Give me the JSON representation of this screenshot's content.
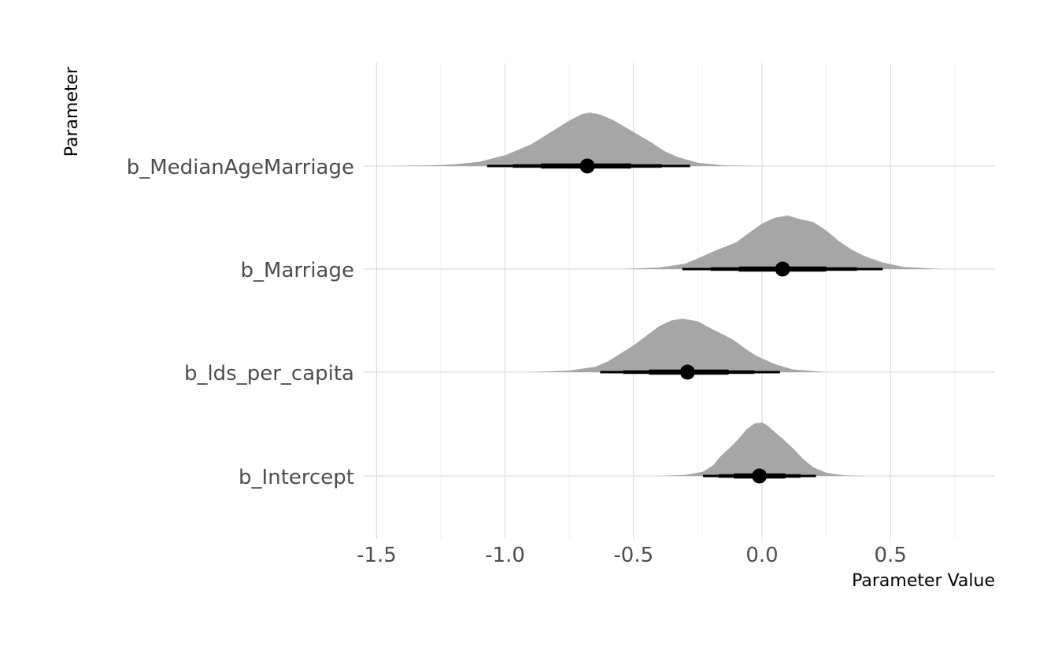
{
  "chart_data": {
    "type": "halfeye",
    "xlabel": "Parameter Value",
    "ylabel": "Parameter",
    "xlim": [
      -1.5,
      0.9
    ],
    "x_ticks": [
      -1.5,
      -1.0,
      -0.5,
      0.0,
      0.5
    ],
    "x_tick_labels": [
      "-1.5",
      "-1.0",
      "-0.5",
      "0.0",
      "0.5"
    ],
    "grid": true,
    "legend": "none",
    "colors": {
      "density": "#a6a6a6",
      "interval": "#000000",
      "grid": "#dcdcdc"
    },
    "parameters": [
      {
        "name": "b_MedianAgeMarriage",
        "median": -0.68,
        "interval_66": [
          -0.86,
          -0.51
        ],
        "interval_80": [
          -0.97,
          -0.39
        ],
        "interval_95": [
          -1.07,
          -0.28
        ],
        "density": [
          [
            -1.45,
            0.0
          ],
          [
            -1.3,
            0.01
          ],
          [
            -1.2,
            0.03
          ],
          [
            -1.1,
            0.08
          ],
          [
            -1.0,
            0.2
          ],
          [
            -0.9,
            0.4
          ],
          [
            -0.85,
            0.55
          ],
          [
            -0.8,
            0.7
          ],
          [
            -0.75,
            0.85
          ],
          [
            -0.7,
            0.97
          ],
          [
            -0.67,
            1.0
          ],
          [
            -0.63,
            0.96
          ],
          [
            -0.58,
            0.86
          ],
          [
            -0.53,
            0.72
          ],
          [
            -0.47,
            0.55
          ],
          [
            -0.43,
            0.44
          ],
          [
            -0.38,
            0.28
          ],
          [
            -0.33,
            0.17
          ],
          [
            -0.25,
            0.06
          ],
          [
            -0.15,
            0.01
          ],
          [
            -0.0,
            0.0
          ]
        ]
      },
      {
        "name": "b_Marriage",
        "median": 0.08,
        "interval_66": [
          -0.09,
          0.25
        ],
        "interval_80": [
          -0.2,
          0.37
        ],
        "interval_95": [
          -0.31,
          0.47
        ],
        "density": [
          [
            -0.55,
            0.0
          ],
          [
            -0.4,
            0.03
          ],
          [
            -0.3,
            0.1
          ],
          [
            -0.25,
            0.2
          ],
          [
            -0.18,
            0.35
          ],
          [
            -0.1,
            0.5
          ],
          [
            -0.05,
            0.68
          ],
          [
            0.0,
            0.85
          ],
          [
            0.05,
            0.96
          ],
          [
            0.1,
            1.0
          ],
          [
            0.15,
            0.93
          ],
          [
            0.2,
            0.88
          ],
          [
            0.25,
            0.72
          ],
          [
            0.3,
            0.52
          ],
          [
            0.35,
            0.36
          ],
          [
            0.4,
            0.24
          ],
          [
            0.47,
            0.12
          ],
          [
            0.55,
            0.04
          ],
          [
            0.7,
            0.0
          ]
        ]
      },
      {
        "name": "b_lds_per_capita",
        "median": -0.29,
        "interval_66": [
          -0.44,
          -0.13
        ],
        "interval_80": [
          -0.54,
          -0.03
        ],
        "interval_95": [
          -0.63,
          0.07
        ],
        "density": [
          [
            -0.9,
            0.0
          ],
          [
            -0.75,
            0.03
          ],
          [
            -0.65,
            0.1
          ],
          [
            -0.6,
            0.2
          ],
          [
            -0.55,
            0.35
          ],
          [
            -0.5,
            0.5
          ],
          [
            -0.45,
            0.68
          ],
          [
            -0.4,
            0.86
          ],
          [
            -0.35,
            0.97
          ],
          [
            -0.31,
            1.0
          ],
          [
            -0.25,
            0.95
          ],
          [
            -0.2,
            0.82
          ],
          [
            -0.15,
            0.7
          ],
          [
            -0.11,
            0.6
          ],
          [
            -0.06,
            0.42
          ],
          [
            -0.02,
            0.3
          ],
          [
            0.05,
            0.15
          ],
          [
            0.12,
            0.05
          ],
          [
            0.25,
            0.0
          ]
        ]
      },
      {
        "name": "b_Intercept",
        "median": -0.01,
        "interval_66": [
          -0.11,
          0.09
        ],
        "interval_80": [
          -0.17,
          0.15
        ],
        "interval_95": [
          -0.23,
          0.21
        ],
        "density": [
          [
            -0.4,
            0.0
          ],
          [
            -0.3,
            0.02
          ],
          [
            -0.23,
            0.08
          ],
          [
            -0.19,
            0.2
          ],
          [
            -0.16,
            0.38
          ],
          [
            -0.12,
            0.55
          ],
          [
            -0.09,
            0.7
          ],
          [
            -0.06,
            0.87
          ],
          [
            -0.03,
            0.98
          ],
          [
            0.0,
            1.0
          ],
          [
            0.02,
            0.95
          ],
          [
            0.05,
            0.82
          ],
          [
            0.08,
            0.7
          ],
          [
            0.12,
            0.52
          ],
          [
            0.16,
            0.32
          ],
          [
            0.2,
            0.16
          ],
          [
            0.25,
            0.06
          ],
          [
            0.32,
            0.01
          ],
          [
            0.4,
            0.0
          ]
        ]
      }
    ]
  }
}
